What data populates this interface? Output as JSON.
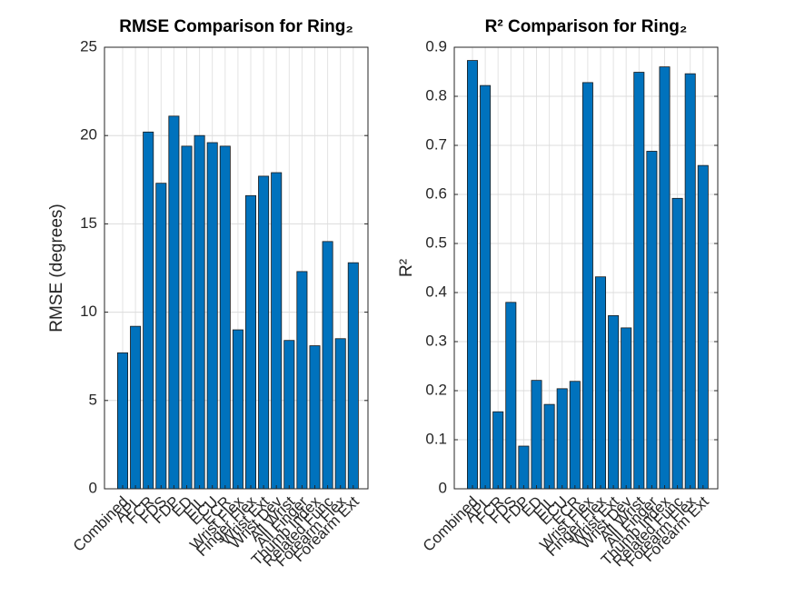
{
  "chart_data": [
    {
      "type": "bar",
      "title": "RMSE Comparison for Ring₂",
      "ylabel": "RMSE (degrees)",
      "color": "#0072bd",
      "grid": true,
      "categories": [
        "Combined",
        "APL",
        "FCR",
        "FDS",
        "FDP",
        "ED",
        "EIL",
        "ECU",
        "ECR",
        "Wrist Flex",
        "Finger Flex",
        "Wrist Ext",
        "Wrist Dev",
        "All Wrist",
        "All Finger",
        "Thumb Index",
        "Related Func",
        "Forearm Flex",
        "Forearm Ext"
      ],
      "values": [
        7.7,
        9.2,
        20.2,
        17.3,
        21.1,
        19.4,
        20.0,
        19.6,
        19.4,
        9.0,
        16.6,
        17.7,
        17.9,
        8.4,
        12.3,
        8.1,
        14.0,
        8.5,
        12.8
      ],
      "ylim": [
        0,
        25
      ],
      "yticks": [
        0,
        5,
        10,
        15,
        20,
        25
      ]
    },
    {
      "type": "bar",
      "title": "R² Comparison for Ring₂",
      "ylabel": "R²",
      "color": "#0072bd",
      "grid": true,
      "categories": [
        "Combined",
        "APL",
        "FCR",
        "FDS",
        "FDP",
        "ED",
        "EIL",
        "ECU",
        "ECR",
        "Wrist Flex",
        "Finger Flex",
        "Wrist Ext",
        "Wrist Dev",
        "All Wrist",
        "All Finger",
        "Thumb Index",
        "Related Func",
        "Forearm Flex",
        "Forearm Ext"
      ],
      "values": [
        0.873,
        0.822,
        0.157,
        0.38,
        0.087,
        0.221,
        0.172,
        0.204,
        0.219,
        0.828,
        0.432,
        0.353,
        0.328,
        0.849,
        0.688,
        0.86,
        0.592,
        0.846,
        0.659
      ],
      "ylim": [
        0,
        0.9
      ],
      "yticks": [
        0,
        0.1,
        0.2,
        0.3,
        0.4,
        0.5,
        0.6,
        0.7,
        0.8,
        0.9
      ]
    }
  ]
}
